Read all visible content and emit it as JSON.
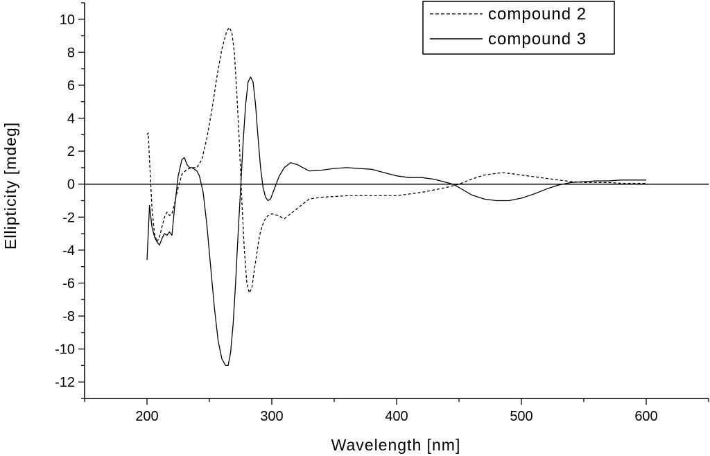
{
  "chart_data": {
    "type": "line",
    "xlabel": "Wavelength [nm]",
    "ylabel": "Ellipticity [mdeg]",
    "xlim": [
      150,
      650
    ],
    "ylim": [
      -13,
      11
    ],
    "xticks": [
      200,
      300,
      400,
      500,
      600
    ],
    "yticks": [
      -12,
      -10,
      -8,
      -6,
      -4,
      -2,
      0,
      2,
      4,
      6,
      8,
      10
    ],
    "grid": false,
    "zero_line": true,
    "legend_placement": "top-right",
    "series": [
      {
        "name": "compound 2",
        "style": "dashed",
        "color": "#000000",
        "x": [
          200,
          201,
          202,
          204,
          206,
          208,
          210,
          212,
          214,
          216,
          218,
          220,
          222,
          225,
          228,
          232,
          236,
          240,
          244,
          248,
          252,
          256,
          260,
          264,
          266,
          268,
          270,
          272,
          274,
          276,
          278,
          280,
          282,
          284,
          286,
          288,
          290,
          292,
          294,
          297,
          300,
          305,
          310,
          315,
          320,
          330,
          340,
          360,
          380,
          400,
          420,
          440,
          450,
          460,
          470,
          480,
          485,
          490,
          500,
          510,
          520,
          530,
          540,
          550,
          560,
          570,
          580,
          590,
          600
        ],
        "y": [
          3.0,
          3.1,
          1.5,
          -1.5,
          -3.0,
          -3.5,
          -3.2,
          -2.6,
          -2.0,
          -1.7,
          -1.9,
          -1.8,
          -1.2,
          -0.2,
          0.6,
          0.9,
          1.0,
          1.0,
          1.5,
          2.8,
          4.5,
          6.5,
          8.2,
          9.3,
          9.5,
          9.2,
          8.0,
          5.5,
          2.5,
          -1.0,
          -4.0,
          -6.0,
          -6.6,
          -6.3,
          -5.2,
          -4.2,
          -3.2,
          -2.6,
          -2.2,
          -1.9,
          -1.8,
          -1.9,
          -2.1,
          -1.8,
          -1.5,
          -0.9,
          -0.8,
          -0.7,
          -0.7,
          -0.7,
          -0.5,
          -0.2,
          0.0,
          0.3,
          0.55,
          0.65,
          0.7,
          0.65,
          0.55,
          0.45,
          0.35,
          0.25,
          0.15,
          0.1,
          0.1,
          0.1,
          0.05,
          0.05,
          0.05
        ]
      },
      {
        "name": "compound 3",
        "style": "solid",
        "color": "#000000",
        "x": [
          200,
          201,
          202,
          204,
          206,
          208,
          210,
          212,
          214,
          216,
          218,
          220,
          222,
          225,
          228,
          230,
          232,
          234,
          236,
          238,
          240,
          242,
          245,
          248,
          251,
          254,
          257,
          260,
          263,
          265,
          267,
          269,
          271,
          273,
          275,
          277,
          279,
          281,
          283,
          285,
          287,
          289,
          291,
          293,
          295,
          297,
          299,
          302,
          306,
          310,
          315,
          320,
          330,
          340,
          350,
          360,
          370,
          380,
          390,
          400,
          410,
          420,
          430,
          440,
          445,
          450,
          460,
          470,
          480,
          490,
          500,
          510,
          520,
          530,
          540,
          550,
          560,
          570,
          580,
          590,
          600
        ],
        "y": [
          -4.6,
          -3.0,
          -1.3,
          -2.6,
          -3.2,
          -3.5,
          -3.7,
          -3.3,
          -3.0,
          -3.1,
          -2.9,
          -3.1,
          -1.5,
          0.5,
          1.5,
          1.6,
          1.2,
          1.0,
          1.0,
          0.9,
          0.8,
          0.5,
          -0.5,
          -2.5,
          -5.0,
          -7.5,
          -9.5,
          -10.6,
          -11.0,
          -11.0,
          -10.2,
          -8.5,
          -6.0,
          -3.0,
          -0.3,
          2.5,
          4.8,
          6.2,
          6.5,
          6.2,
          4.8,
          2.8,
          1.0,
          -0.2,
          -0.8,
          -1.0,
          -0.9,
          -0.3,
          0.5,
          1.0,
          1.3,
          1.2,
          0.8,
          0.85,
          0.95,
          1.0,
          0.95,
          0.9,
          0.7,
          0.5,
          0.4,
          0.4,
          0.3,
          0.1,
          0.0,
          -0.2,
          -0.65,
          -0.9,
          -1.0,
          -1.0,
          -0.85,
          -0.6,
          -0.3,
          -0.05,
          0.1,
          0.15,
          0.2,
          0.2,
          0.25,
          0.25,
          0.25
        ]
      }
    ]
  }
}
